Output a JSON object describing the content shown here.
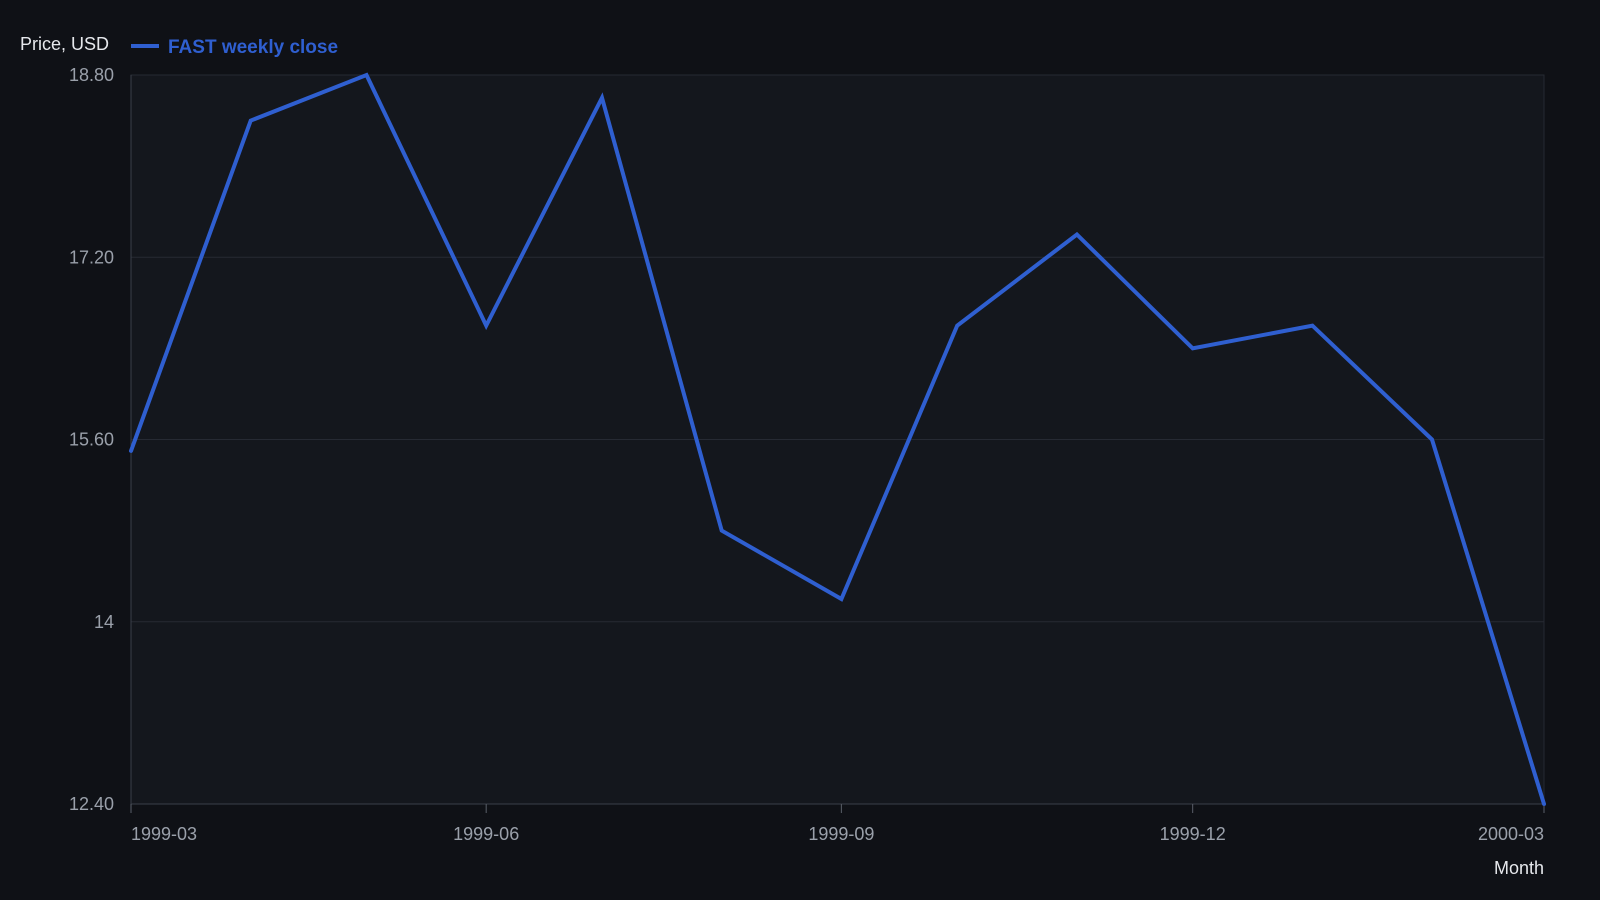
{
  "chart_data": {
    "type": "line",
    "ylabel": "Price, USD",
    "xlabel": "Month",
    "ylim": [
      12.4,
      18.8
    ],
    "yticks": [
      "12.40",
      "14",
      "15.60",
      "17.20",
      "18.80"
    ],
    "ytick_values": [
      12.4,
      14.0,
      15.6,
      17.2,
      18.8
    ],
    "xlim": [
      "1999-03",
      "2000-03"
    ],
    "xticks": [
      "1999-03",
      "1999-06",
      "1999-09",
      "1999-12",
      "2000-03"
    ],
    "grid": true,
    "legend_position": "top-left",
    "series": [
      {
        "name": "FAST weekly close",
        "color": "#2f5fd0",
        "x": [
          "1999-03-01",
          "1999-04-01",
          "1999-05-01",
          "1999-06-01",
          "1999-07-01",
          "1999-08-01",
          "1999-09-01",
          "1999-10-01",
          "1999-11-01",
          "1999-12-01",
          "2000-01-01",
          "2000-02-01",
          "2000-03-01"
        ],
        "y": [
          15.5,
          18.4,
          18.8,
          16.6,
          18.6,
          14.8,
          14.2,
          16.6,
          17.4,
          16.4,
          16.6,
          15.6,
          12.4
        ]
      }
    ]
  }
}
